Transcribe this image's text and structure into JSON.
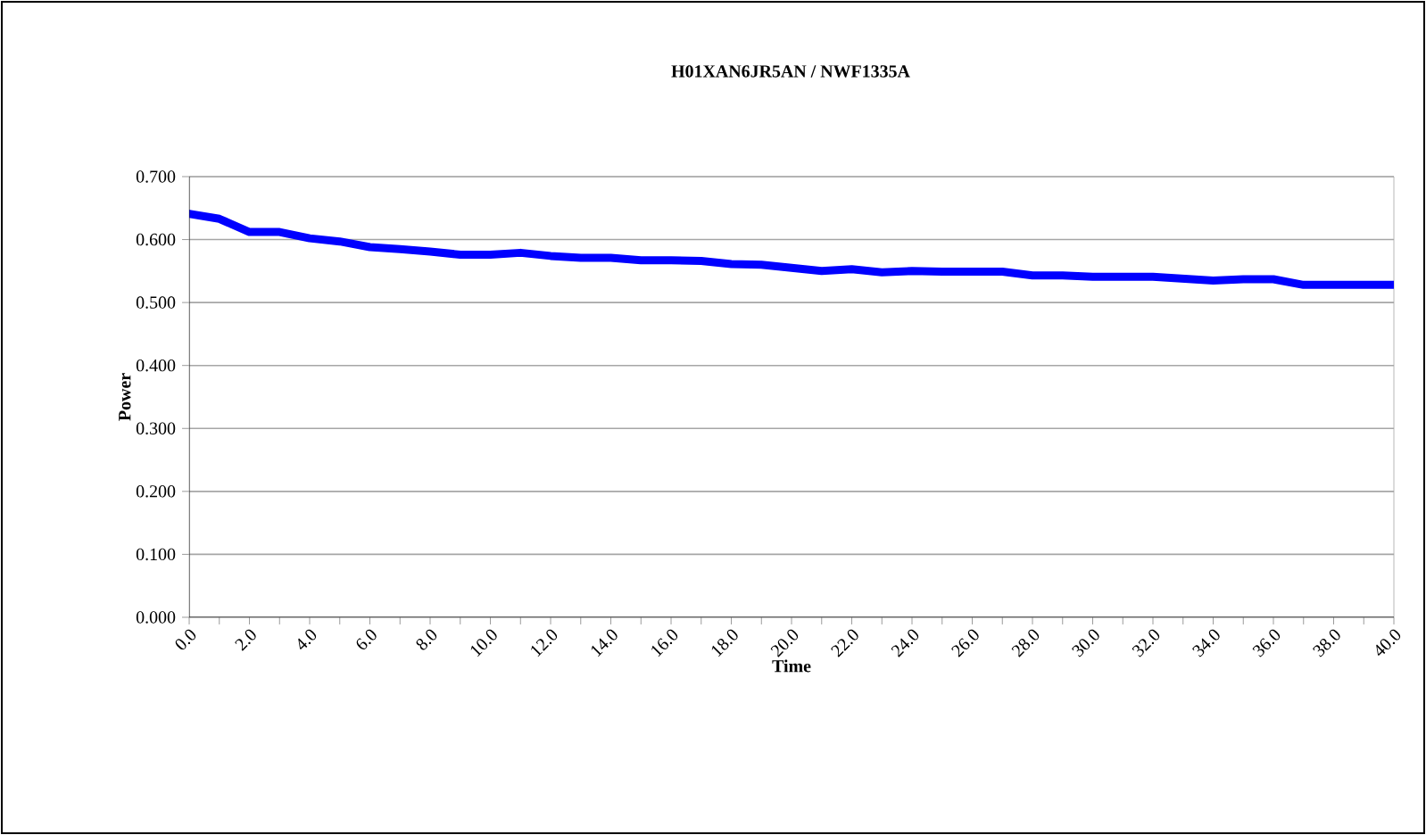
{
  "chart_data": {
    "type": "line",
    "title": "H01XAN6JR5AN / NWF1335A",
    "xlabel": "Time",
    "ylabel": "Power",
    "x": [
      0,
      1,
      2,
      3,
      4,
      5,
      6,
      7,
      8,
      9,
      10,
      11,
      12,
      13,
      14,
      15,
      16,
      17,
      18,
      19,
      20,
      21,
      22,
      23,
      24,
      25,
      26,
      27,
      28,
      29,
      30,
      31,
      32,
      33,
      34,
      35,
      36,
      37,
      38,
      39,
      40
    ],
    "series": [
      {
        "color": "#0000ff",
        "values": [
          0.641,
          0.633,
          0.612,
          0.612,
          0.602,
          0.597,
          0.588,
          0.585,
          0.581,
          0.576,
          0.576,
          0.579,
          0.574,
          0.571,
          0.571,
          0.567,
          0.567,
          0.566,
          0.561,
          0.56,
          0.555,
          0.55,
          0.553,
          0.548,
          0.55,
          0.549,
          0.549,
          0.549,
          0.543,
          0.543,
          0.541,
          0.541,
          0.541,
          0.538,
          0.535,
          0.537,
          0.537,
          0.528,
          0.528,
          0.528,
          0.528
        ]
      }
    ],
    "xlim": [
      0,
      40
    ],
    "xticks": [
      {
        "value": 0,
        "label": "0.0"
      },
      {
        "value": 1,
        "label": null
      },
      {
        "value": 2,
        "label": "2.0"
      },
      {
        "value": 3,
        "label": null
      },
      {
        "value": 4,
        "label": "4.0"
      },
      {
        "value": 5,
        "label": null
      },
      {
        "value": 6,
        "label": "6.0"
      },
      {
        "value": 7,
        "label": null
      },
      {
        "value": 8,
        "label": "8.0"
      },
      {
        "value": 9,
        "label": null
      },
      {
        "value": 10,
        "label": "10.0"
      },
      {
        "value": 11,
        "label": null
      },
      {
        "value": 12,
        "label": "12.0"
      },
      {
        "value": 13,
        "label": null
      },
      {
        "value": 14,
        "label": "14.0"
      },
      {
        "value": 15,
        "label": null
      },
      {
        "value": 16,
        "label": "16.0"
      },
      {
        "value": 17,
        "label": null
      },
      {
        "value": 18,
        "label": "18.0"
      },
      {
        "value": 19,
        "label": null
      },
      {
        "value": 20,
        "label": "20.0"
      },
      {
        "value": 21,
        "label": null
      },
      {
        "value": 22,
        "label": "22.0"
      },
      {
        "value": 23,
        "label": null
      },
      {
        "value": 24,
        "label": "24.0"
      },
      {
        "value": 25,
        "label": null
      },
      {
        "value": 26,
        "label": "26.0"
      },
      {
        "value": 27,
        "label": null
      },
      {
        "value": 28,
        "label": "28.0"
      },
      {
        "value": 29,
        "label": null
      },
      {
        "value": 30,
        "label": "30.0"
      },
      {
        "value": 31,
        "label": null
      },
      {
        "value": 32,
        "label": "32.0"
      },
      {
        "value": 33,
        "label": null
      },
      {
        "value": 34,
        "label": "34.0"
      },
      {
        "value": 35,
        "label": null
      },
      {
        "value": 36,
        "label": "36.0"
      },
      {
        "value": 37,
        "label": null
      },
      {
        "value": 38,
        "label": "38.0"
      },
      {
        "value": 39,
        "label": null
      },
      {
        "value": 40,
        "label": "40.0"
      }
    ],
    "ylim": [
      0,
      0.7
    ],
    "yticks": [
      {
        "value": 0,
        "label": "0.000"
      },
      {
        "value": 0.1,
        "label": "0.100"
      },
      {
        "value": 0.2,
        "label": "0.200"
      },
      {
        "value": 0.3,
        "label": "0.300"
      },
      {
        "value": 0.4,
        "label": "0.400"
      },
      {
        "value": 0.5,
        "label": "0.500"
      },
      {
        "value": 0.6,
        "label": "0.600"
      },
      {
        "value": 0.7,
        "label": "0.700"
      }
    ],
    "grid": "y",
    "legend": false,
    "marker": "none",
    "line_style": "solid"
  }
}
